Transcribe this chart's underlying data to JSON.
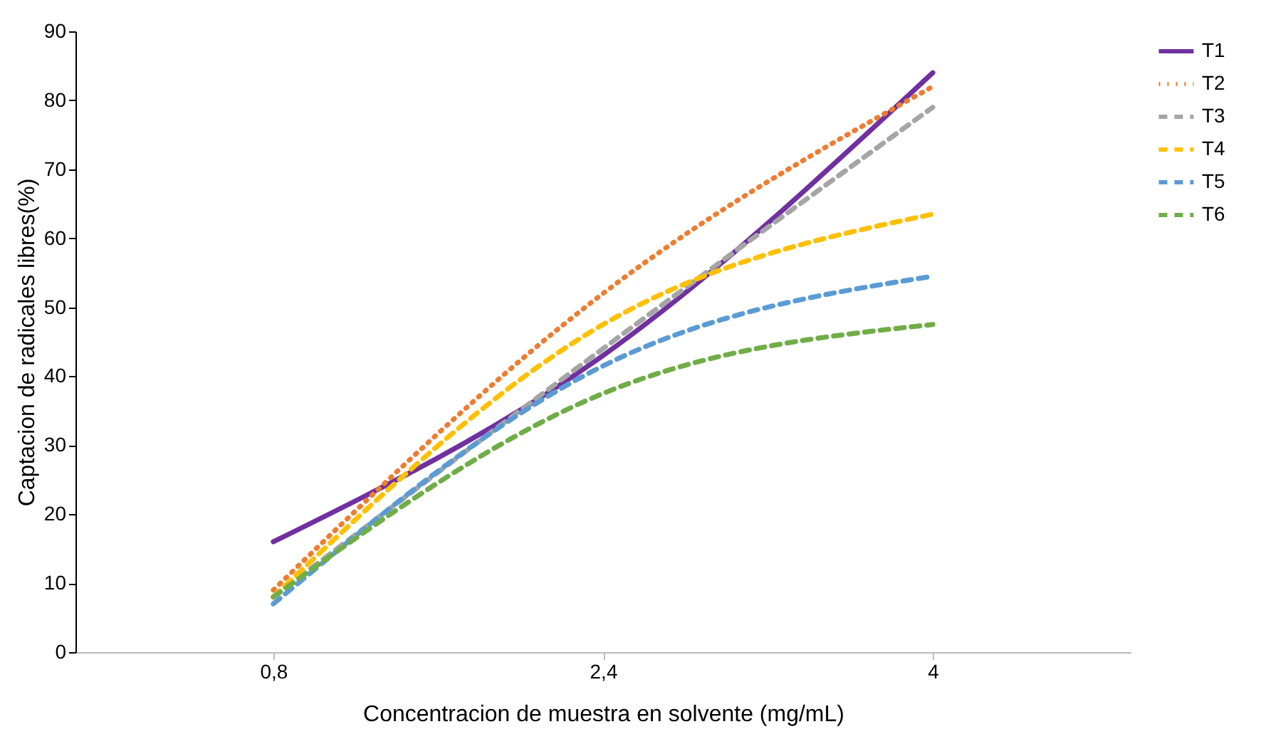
{
  "chart_data": {
    "type": "line",
    "xlabel": "Concentracion de muestra en solvente (mg/mL)",
    "ylabel": "Captacion de radicales libres(%)",
    "categories": [
      "0,8",
      "2,4",
      "4"
    ],
    "series": [
      {
        "name": "T1",
        "color": "#7030a0",
        "line_style": "solid",
        "values": [
          16,
          43,
          84
        ]
      },
      {
        "name": "T2",
        "color": "#ed7d31",
        "line_style": "dotted",
        "values": [
          9,
          52,
          82
        ]
      },
      {
        "name": "T3",
        "color": "#a5a5a5",
        "line_style": "dashed",
        "values": [
          8,
          44,
          79
        ]
      },
      {
        "name": "T4",
        "color": "#ffc000",
        "line_style": "dashed",
        "values": [
          8,
          47.5,
          63.5
        ]
      },
      {
        "name": "T5",
        "color": "#5b9bd5",
        "line_style": "dashed",
        "values": [
          7,
          41.5,
          54.5
        ]
      },
      {
        "name": "T6",
        "color": "#70ad47",
        "line_style": "dashed",
        "values": [
          8,
          37.5,
          47.5
        ]
      }
    ],
    "ylim": [
      0,
      90
    ],
    "yticks": [
      0,
      10,
      20,
      30,
      40,
      50,
      60,
      70,
      80,
      90
    ],
    "grid": false,
    "legend": "right",
    "marker": "none"
  }
}
